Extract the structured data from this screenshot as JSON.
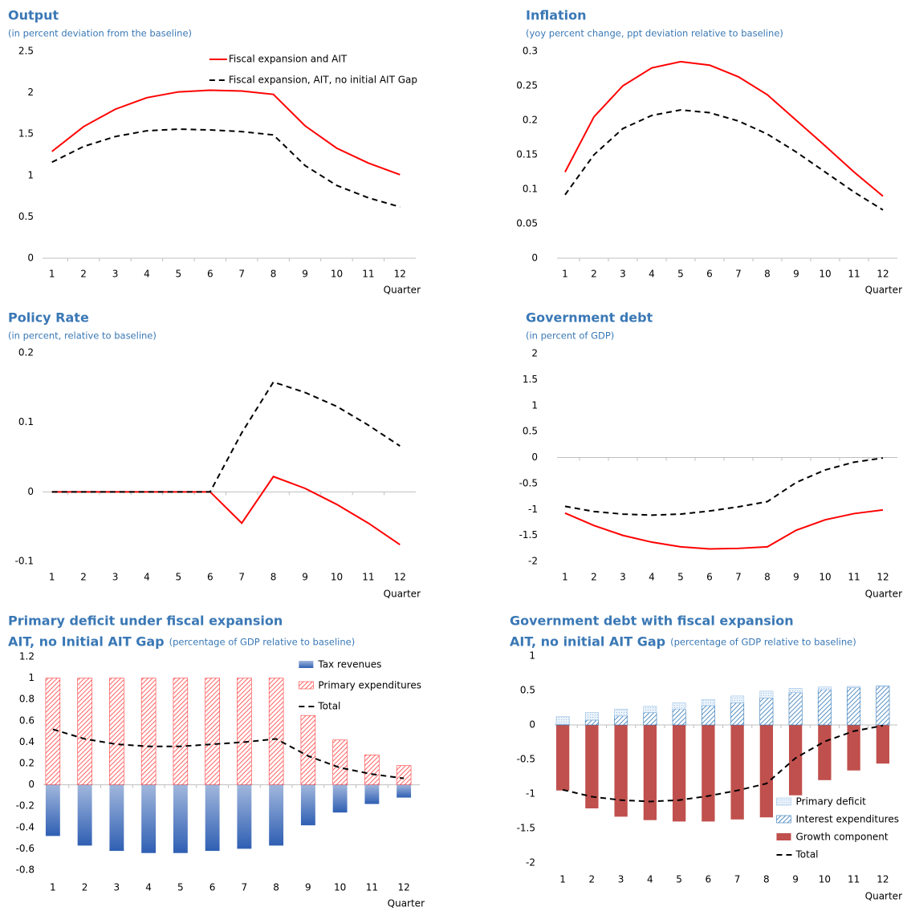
{
  "chart_data": [
    {
      "type": "line",
      "title": "Output",
      "subtitle": "(in percent deviation from the baseline)",
      "categories": [
        "1",
        "2",
        "3",
        "4",
        "5",
        "6",
        "7",
        "8",
        "9",
        "10",
        "11",
        "12"
      ],
      "xlabel": "Quarter",
      "ylim": [
        0,
        2.5
      ],
      "yticks": [
        0,
        0.5,
        1,
        1.5,
        2,
        2.5
      ],
      "legend": "upper right",
      "series": [
        {
          "name": "Fiscal expansion and AIT",
          "color": "#ff0000",
          "style": "solid",
          "values": [
            1.29,
            1.59,
            1.8,
            1.94,
            2.01,
            2.03,
            2.02,
            1.98,
            1.6,
            1.33,
            1.15,
            1.01
          ]
        },
        {
          "name": "Fiscal expansion, AIT, no initial AIT Gap",
          "color": "#000000",
          "style": "dashed",
          "values": [
            1.16,
            1.35,
            1.47,
            1.54,
            1.56,
            1.55,
            1.53,
            1.49,
            1.12,
            0.88,
            0.73,
            0.62
          ]
        }
      ]
    },
    {
      "type": "line",
      "title": "Inflation",
      "subtitle": "(yoy percent change, ppt deviation relative to baseline)",
      "categories": [
        "1",
        "2",
        "3",
        "4",
        "5",
        "6",
        "7",
        "8",
        "9",
        "10",
        "11",
        "12"
      ],
      "xlabel": "Quarter",
      "ylim": [
        0,
        0.3
      ],
      "yticks": [
        0,
        0.05,
        0.1,
        0.15,
        0.2,
        0.25,
        0.3
      ],
      "series": [
        {
          "color": "#ff0000",
          "style": "solid",
          "values": [
            0.125,
            0.205,
            0.25,
            0.276,
            0.285,
            0.28,
            0.263,
            0.237,
            0.2,
            0.163,
            0.125,
            0.09
          ]
        },
        {
          "color": "#000000",
          "style": "dashed",
          "values": [
            0.092,
            0.15,
            0.188,
            0.207,
            0.215,
            0.211,
            0.199,
            0.18,
            0.154,
            0.125,
            0.096,
            0.07
          ]
        }
      ]
    },
    {
      "type": "line",
      "title": "Policy Rate",
      "subtitle": "(in percent, relative to baseline)",
      "categories": [
        "1",
        "2",
        "3",
        "4",
        "5",
        "6",
        "7",
        "8",
        "9",
        "10",
        "11",
        "12"
      ],
      "xlabel": "Quarter",
      "ylim": [
        -0.1,
        0.2
      ],
      "yticks": [
        -0.1,
        0,
        0.1,
        0.2
      ],
      "series": [
        {
          "color": "#ff0000",
          "style": "solid",
          "values": [
            0,
            0,
            0,
            0,
            0,
            0,
            -0.045,
            0.022,
            0.005,
            -0.018,
            -0.045,
            -0.076
          ]
        },
        {
          "color": "#000000",
          "style": "dashed",
          "values": [
            0,
            0,
            0,
            0,
            0,
            0,
            0.085,
            0.158,
            0.143,
            0.123,
            0.096,
            0.066
          ]
        }
      ]
    },
    {
      "type": "line",
      "title": "Government debt",
      "subtitle": "(in percent of GDP)",
      "categories": [
        "1",
        "2",
        "3",
        "4",
        "5",
        "6",
        "7",
        "8",
        "9",
        "10",
        "11",
        "12"
      ],
      "xlabel": "Quarter",
      "ylim": [
        -2,
        2
      ],
      "yticks": [
        -2,
        -1.5,
        -1,
        -0.5,
        0,
        0.5,
        1,
        1.5,
        2
      ],
      "series": [
        {
          "color": "#ff0000",
          "style": "solid",
          "values": [
            -1.07,
            -1.31,
            -1.5,
            -1.63,
            -1.72,
            -1.76,
            -1.75,
            -1.72,
            -1.4,
            -1.2,
            -1.08,
            -1.01
          ]
        },
        {
          "color": "#000000",
          "style": "dashed",
          "values": [
            -0.94,
            -1.04,
            -1.09,
            -1.11,
            -1.09,
            -1.03,
            -0.95,
            -0.85,
            -0.48,
            -0.24,
            -0.09,
            -0.01
          ]
        }
      ]
    },
    {
      "type": "stacked_bar",
      "title": [
        "Primary deficit under fiscal expansion",
        "AIT, no Initial AIT Gap"
      ],
      "subtitle": "(percentage of GDP relative to baseline)",
      "categories": [
        "1",
        "2",
        "3",
        "4",
        "5",
        "6",
        "7",
        "8",
        "9",
        "10",
        "11",
        "12"
      ],
      "xlabel": "Quarter",
      "ylim": [
        -0.8,
        1.2
      ],
      "yticks": [
        -0.8,
        -0.6,
        -0.4,
        -0.2,
        0,
        0.2,
        0.4,
        0.6,
        0.8,
        1,
        1.2
      ],
      "legend": "upper right",
      "series": [
        {
          "name": "Tax revenues",
          "kind": "bar",
          "color": "#2f5fb3",
          "fill": "gradient",
          "values": [
            -0.48,
            -0.57,
            -0.62,
            -0.64,
            -0.64,
            -0.62,
            -0.6,
            -0.57,
            -0.38,
            -0.26,
            -0.18,
            -0.12
          ]
        },
        {
          "name": "Primary expenditures",
          "kind": "bar",
          "color": "#ff3b3b",
          "fill": "hatch",
          "values": [
            1,
            1,
            1,
            1,
            1,
            1,
            1,
            1,
            0.65,
            0.42,
            0.28,
            0.18
          ]
        },
        {
          "name": "Total",
          "kind": "line",
          "color": "#000000",
          "style": "dashed",
          "values": [
            0.52,
            0.43,
            0.38,
            0.36,
            0.36,
            0.38,
            0.4,
            0.43,
            0.27,
            0.16,
            0.1,
            0.06
          ]
        }
      ]
    },
    {
      "type": "stacked_bar",
      "title": [
        "Government debt with fiscal expansion",
        "AIT, no initial AIT Gap"
      ],
      "subtitle": "(percentage of GDP relative to baseline)",
      "categories": [
        "1",
        "2",
        "3",
        "4",
        "5",
        "6",
        "7",
        "8",
        "9",
        "10",
        "11",
        "12"
      ],
      "xlabel": "Quarter",
      "ylim": [
        -2,
        1
      ],
      "yticks": [
        -2,
        -1.5,
        -1,
        -0.5,
        0,
        0.5,
        1
      ],
      "legend": "lower right",
      "series": [
        {
          "name": "Primary deficit",
          "kind": "bar",
          "color": "#9dc3e6",
          "fill": "dots",
          "values": [
            0.11,
            0.11,
            0.1,
            0.09,
            0.09,
            0.09,
            0.1,
            0.1,
            0.06,
            0.04,
            0.02,
            0.01
          ]
        },
        {
          "name": "Interest expenditures",
          "kind": "bar",
          "color": "#2e75b6",
          "fill": "hatch",
          "values": [
            0.01,
            0.07,
            0.13,
            0.18,
            0.23,
            0.28,
            0.32,
            0.39,
            0.47,
            0.51,
            0.54,
            0.56
          ]
        },
        {
          "name": "Growth component",
          "kind": "bar",
          "color": "#c0504d",
          "fill": "solid",
          "values": [
            -0.95,
            -1.21,
            -1.33,
            -1.38,
            -1.4,
            -1.4,
            -1.37,
            -1.34,
            -1.02,
            -0.8,
            -0.66,
            -0.56
          ]
        },
        {
          "name": "Total",
          "kind": "line",
          "color": "#000000",
          "style": "dashed",
          "values": [
            -0.94,
            -1.04,
            -1.09,
            -1.11,
            -1.09,
            -1.03,
            -0.95,
            -0.85,
            -0.48,
            -0.24,
            -0.09,
            -0.01
          ]
        }
      ]
    }
  ]
}
